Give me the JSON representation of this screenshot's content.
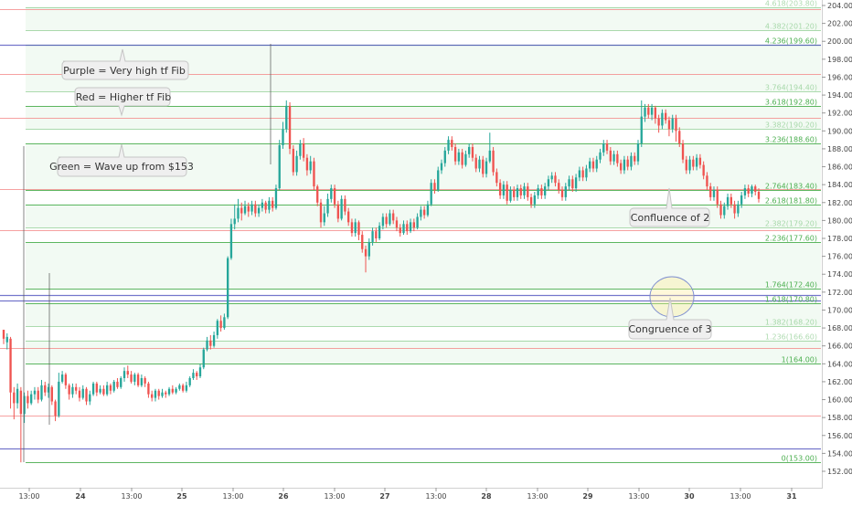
{
  "chart_data": {
    "type": "candlestick",
    "ylim": [
      151,
      205
    ],
    "y_ticks": [
      "152.00",
      "154.00",
      "156.00",
      "158.00",
      "160.00",
      "162.00",
      "164.00",
      "166.00",
      "168.00",
      "170.00",
      "172.00",
      "174.00",
      "176.00",
      "178.00",
      "180.00",
      "182.00",
      "184.00",
      "186.00",
      "188.00",
      "190.00",
      "192.00",
      "194.00",
      "196.00",
      "198.00",
      "200.00",
      "202.00",
      "204.00"
    ],
    "x_ticks": [
      "13:00",
      "24",
      "13:00",
      "25",
      "13:00",
      "26",
      "13:00",
      "27",
      "13:00",
      "28",
      "13:00",
      "29",
      "13:00",
      "30",
      "13:00",
      "31"
    ],
    "fib_levels": [
      {
        "label": "0(153.00)",
        "value": 153.0,
        "group": "green"
      },
      {
        "label": "1(164.00)",
        "value": 164.0,
        "group": "green"
      },
      {
        "label": "1.236(166.60)",
        "value": 166.6,
        "group": "green"
      },
      {
        "label": "1.382(168.20)",
        "value": 168.2,
        "group": "green"
      },
      {
        "label": "1.618(170.80)",
        "value": 170.8,
        "group": "green"
      },
      {
        "label": "1.764(172.40)",
        "value": 172.4,
        "group": "green"
      },
      {
        "label": "2.236(177.60)",
        "value": 177.6,
        "group": "green"
      },
      {
        "label": "2.382(179.20)",
        "value": 179.2,
        "group": "green"
      },
      {
        "label": "2.618(181.80)",
        "value": 181.8,
        "group": "green"
      },
      {
        "label": "2.764(183.40)",
        "value": 183.4,
        "group": "green"
      },
      {
        "label": "3.236(188.60)",
        "value": 188.6,
        "group": "green"
      },
      {
        "label": "3.382(190.20)",
        "value": 190.2,
        "group": "green"
      },
      {
        "label": "3.618(192.80)",
        "value": 192.8,
        "group": "green"
      },
      {
        "label": "3.764(194.40)",
        "value": 194.4,
        "group": "green"
      },
      {
        "label": "4.236(199.60)",
        "value": 199.6,
        "group": "green"
      },
      {
        "label": "4.382(201.20)",
        "value": 201.2,
        "group": "green"
      },
      {
        "label": "4.618(203.80)",
        "value": 203.8,
        "group": "green"
      }
    ],
    "red_levels": [
      158.2,
      165.8,
      178.9,
      183.5,
      191.5,
      196.4,
      203.6
    ],
    "purple_levels": [
      154.6,
      171.1,
      171.7,
      199.6
    ],
    "candles": [
      [
        167.8,
        166.8,
        167.6,
        166.2
      ],
      [
        166.4,
        167.0,
        167.4,
        165.6
      ],
      [
        166.8,
        160.8,
        167.0,
        159.0
      ],
      [
        160.8,
        159.6,
        161.4,
        157.8
      ],
      [
        159.6,
        161.2,
        161.8,
        159.0
      ],
      [
        161.0,
        158.4,
        161.4,
        153.0
      ],
      [
        158.4,
        160.4,
        160.8,
        157.4
      ],
      [
        160.4,
        159.6,
        161.0,
        159.0
      ],
      [
        159.6,
        160.6,
        161.0,
        159.4
      ],
      [
        160.6,
        161.0,
        161.4,
        160.0
      ],
      [
        161.0,
        160.0,
        161.4,
        159.6
      ],
      [
        160.0,
        161.6,
        162.2,
        159.8
      ],
      [
        161.6,
        160.8,
        162.0,
        160.4
      ],
      [
        160.8,
        161.4,
        161.8,
        160.2
      ],
      [
        161.4,
        159.8,
        161.6,
        159.4
      ],
      [
        159.8,
        158.2,
        160.0,
        157.6
      ],
      [
        158.2,
        162.0,
        163.0,
        158.0
      ],
      [
        162.0,
        162.8,
        163.2,
        161.8
      ],
      [
        162.8,
        161.6,
        163.0,
        161.2
      ],
      [
        161.6,
        160.6,
        161.8,
        160.0
      ],
      [
        160.6,
        161.4,
        161.8,
        160.2
      ],
      [
        161.4,
        161.0,
        161.8,
        160.6
      ],
      [
        161.0,
        160.2,
        161.4,
        159.8
      ],
      [
        160.2,
        161.2,
        161.6,
        160.0
      ],
      [
        161.2,
        159.8,
        161.4,
        159.4
      ],
      [
        159.8,
        160.6,
        161.0,
        159.4
      ],
      [
        160.6,
        161.8,
        162.0,
        160.4
      ],
      [
        161.8,
        160.8,
        162.0,
        160.4
      ],
      [
        160.8,
        161.2,
        161.6,
        160.6
      ],
      [
        161.2,
        160.6,
        161.6,
        160.4
      ],
      [
        160.6,
        161.6,
        162.0,
        160.4
      ],
      [
        161.6,
        161.0,
        161.8,
        160.6
      ],
      [
        161.0,
        162.0,
        162.2,
        160.8
      ],
      [
        162.0,
        161.4,
        162.4,
        161.2
      ],
      [
        161.4,
        162.4,
        162.6,
        161.2
      ],
      [
        162.4,
        163.2,
        163.6,
        162.0
      ],
      [
        163.2,
        162.8,
        163.8,
        162.4
      ],
      [
        162.8,
        162.0,
        163.2,
        161.8
      ],
      [
        162.0,
        162.8,
        163.0,
        161.6
      ],
      [
        162.8,
        161.6,
        163.0,
        161.4
      ],
      [
        161.6,
        162.4,
        162.8,
        161.4
      ],
      [
        162.4,
        161.8,
        162.6,
        161.4
      ],
      [
        161.8,
        160.6,
        162.0,
        160.2
      ],
      [
        160.6,
        160.2,
        161.0,
        159.8
      ],
      [
        160.2,
        161.0,
        161.2,
        159.8
      ],
      [
        161.0,
        160.4,
        161.2,
        160.0
      ],
      [
        160.4,
        160.8,
        161.2,
        160.2
      ],
      [
        160.8,
        160.6,
        161.0,
        160.2
      ],
      [
        160.6,
        161.2,
        161.4,
        160.4
      ],
      [
        161.2,
        160.8,
        161.6,
        160.6
      ],
      [
        160.8,
        161.2,
        161.4,
        160.6
      ],
      [
        161.2,
        161.6,
        161.8,
        161.0
      ],
      [
        161.6,
        161.0,
        161.8,
        160.8
      ],
      [
        161.0,
        161.6,
        162.0,
        160.8
      ],
      [
        161.6,
        162.4,
        162.6,
        161.4
      ],
      [
        162.4,
        163.0,
        163.4,
        162.2
      ],
      [
        163.0,
        162.6,
        163.2,
        162.2
      ],
      [
        162.6,
        163.6,
        164.0,
        162.4
      ],
      [
        163.6,
        165.6,
        165.8,
        163.4
      ],
      [
        165.6,
        166.6,
        167.0,
        165.4
      ],
      [
        166.6,
        166.0,
        167.2,
        165.6
      ],
      [
        166.0,
        167.2,
        167.6,
        165.8
      ],
      [
        167.2,
        168.8,
        169.0,
        166.8
      ],
      [
        168.8,
        168.0,
        169.4,
        167.6
      ],
      [
        168.0,
        169.2,
        169.6,
        167.8
      ],
      [
        169.2,
        175.8,
        176.0,
        169.0
      ],
      [
        175.8,
        179.6,
        180.2,
        175.6
      ],
      [
        179.6,
        180.2,
        181.8,
        179.0
      ],
      [
        180.2,
        181.4,
        182.4,
        179.8
      ],
      [
        181.4,
        180.8,
        182.0,
        180.0
      ],
      [
        180.8,
        181.6,
        182.2,
        180.6
      ],
      [
        181.6,
        181.0,
        182.0,
        180.4
      ],
      [
        181.0,
        181.8,
        182.2,
        180.6
      ],
      [
        181.8,
        180.8,
        182.2,
        180.4
      ],
      [
        180.8,
        181.4,
        181.8,
        180.4
      ],
      [
        181.4,
        182.0,
        182.4,
        181.0
      ],
      [
        182.0,
        181.2,
        182.2,
        180.8
      ],
      [
        181.2,
        182.2,
        182.6,
        180.8
      ],
      [
        182.2,
        181.4,
        182.6,
        181.0
      ],
      [
        181.4,
        183.6,
        184.0,
        181.2
      ],
      [
        183.6,
        188.4,
        189.0,
        183.4
      ],
      [
        188.4,
        190.2,
        191.0,
        188.0
      ],
      [
        190.2,
        192.8,
        193.4,
        189.8
      ],
      [
        192.8,
        188.0,
        193.2,
        187.4
      ],
      [
        188.0,
        185.4,
        188.4,
        185.0
      ],
      [
        185.4,
        187.2,
        187.8,
        185.0
      ],
      [
        187.2,
        188.6,
        189.0,
        186.8
      ],
      [
        188.6,
        187.0,
        189.2,
        186.6
      ],
      [
        187.0,
        185.6,
        187.4,
        185.0
      ],
      [
        185.6,
        186.6,
        187.2,
        185.2
      ],
      [
        186.6,
        183.8,
        187.0,
        183.4
      ],
      [
        183.8,
        182.0,
        184.0,
        181.6
      ],
      [
        182.0,
        179.8,
        182.4,
        179.2
      ],
      [
        179.8,
        180.8,
        181.6,
        179.4
      ],
      [
        180.8,
        182.4,
        183.0,
        180.4
      ],
      [
        182.4,
        183.6,
        184.0,
        182.0
      ],
      [
        183.6,
        181.8,
        184.0,
        181.4
      ],
      [
        181.8,
        180.2,
        182.2,
        179.8
      ],
      [
        180.2,
        182.4,
        182.8,
        180.0
      ],
      [
        182.4,
        181.0,
        182.8,
        180.6
      ],
      [
        181.0,
        179.8,
        181.4,
        179.4
      ],
      [
        179.8,
        178.6,
        180.2,
        178.2
      ],
      [
        178.6,
        179.8,
        180.2,
        178.2
      ],
      [
        179.8,
        178.4,
        180.0,
        177.8
      ],
      [
        178.4,
        176.8,
        178.8,
        176.4
      ],
      [
        176.8,
        176.0,
        177.2,
        174.2
      ],
      [
        176.0,
        177.6,
        178.0,
        175.6
      ],
      [
        177.6,
        178.8,
        179.2,
        177.2
      ],
      [
        178.8,
        178.0,
        179.2,
        177.6
      ],
      [
        178.0,
        179.4,
        179.8,
        177.8
      ],
      [
        179.4,
        180.4,
        180.8,
        179.0
      ],
      [
        180.4,
        179.6,
        180.8,
        179.2
      ],
      [
        179.6,
        180.8,
        181.2,
        179.4
      ],
      [
        180.8,
        180.0,
        181.2,
        179.6
      ],
      [
        180.0,
        179.2,
        180.4,
        178.8
      ],
      [
        179.2,
        178.6,
        179.6,
        178.2
      ],
      [
        178.6,
        179.6,
        180.0,
        178.4
      ],
      [
        179.6,
        178.8,
        180.0,
        178.4
      ],
      [
        178.8,
        179.8,
        180.2,
        178.6
      ],
      [
        179.8,
        179.2,
        180.2,
        178.8
      ],
      [
        179.2,
        180.4,
        180.8,
        179.0
      ],
      [
        180.4,
        181.2,
        181.6,
        180.0
      ],
      [
        181.2,
        180.6,
        181.6,
        180.2
      ],
      [
        180.6,
        181.8,
        182.2,
        180.4
      ],
      [
        181.8,
        184.2,
        184.6,
        181.6
      ],
      [
        184.2,
        183.4,
        184.6,
        183.0
      ],
      [
        183.4,
        185.6,
        186.0,
        183.2
      ],
      [
        185.6,
        186.4,
        186.8,
        185.2
      ],
      [
        186.4,
        187.8,
        188.2,
        186.0
      ],
      [
        187.8,
        189.0,
        189.4,
        187.4
      ],
      [
        189.0,
        188.2,
        189.4,
        187.8
      ],
      [
        188.2,
        186.6,
        188.6,
        186.2
      ],
      [
        186.6,
        187.6,
        188.0,
        186.2
      ],
      [
        187.6,
        186.2,
        188.0,
        185.8
      ],
      [
        186.2,
        187.4,
        187.8,
        186.0
      ],
      [
        187.4,
        188.2,
        188.6,
        187.0
      ],
      [
        188.2,
        187.0,
        188.6,
        186.6
      ],
      [
        187.0,
        185.8,
        187.4,
        185.4
      ],
      [
        185.8,
        186.8,
        187.2,
        185.4
      ],
      [
        186.8,
        185.2,
        187.2,
        184.8
      ],
      [
        185.2,
        186.6,
        187.0,
        184.8
      ],
      [
        186.6,
        187.8,
        189.8,
        186.4
      ],
      [
        187.8,
        185.4,
        188.2,
        185.0
      ],
      [
        185.4,
        184.2,
        185.8,
        183.8
      ],
      [
        184.2,
        182.8,
        184.6,
        182.4
      ],
      [
        182.8,
        184.0,
        184.4,
        182.4
      ],
      [
        184.0,
        182.2,
        184.4,
        181.8
      ],
      [
        182.2,
        183.4,
        183.8,
        182.0
      ],
      [
        183.4,
        182.6,
        183.8,
        182.2
      ],
      [
        182.6,
        183.6,
        184.0,
        182.2
      ],
      [
        183.6,
        182.8,
        184.0,
        182.4
      ],
      [
        182.8,
        183.8,
        184.2,
        182.4
      ],
      [
        183.8,
        182.6,
        184.2,
        182.2
      ],
      [
        182.6,
        181.8,
        183.0,
        181.4
      ],
      [
        181.8,
        182.8,
        183.2,
        181.4
      ],
      [
        182.8,
        183.6,
        184.0,
        182.4
      ],
      [
        183.6,
        182.8,
        184.0,
        182.4
      ],
      [
        182.8,
        183.8,
        184.2,
        182.4
      ],
      [
        183.8,
        184.6,
        185.0,
        183.4
      ],
      [
        184.6,
        185.0,
        185.4,
        184.2
      ],
      [
        185.0,
        184.2,
        185.4,
        183.8
      ],
      [
        184.2,
        183.4,
        184.6,
        183.0
      ],
      [
        183.4,
        182.6,
        183.8,
        182.2
      ],
      [
        182.6,
        183.8,
        184.2,
        182.2
      ],
      [
        183.8,
        184.6,
        185.0,
        183.4
      ],
      [
        184.6,
        183.6,
        185.0,
        183.2
      ],
      [
        183.6,
        184.8,
        185.2,
        183.2
      ],
      [
        184.8,
        185.6,
        186.0,
        184.4
      ],
      [
        185.6,
        184.8,
        186.0,
        184.4
      ],
      [
        184.8,
        185.8,
        186.2,
        184.4
      ],
      [
        185.8,
        186.6,
        187.0,
        185.4
      ],
      [
        186.6,
        185.8,
        187.0,
        185.4
      ],
      [
        185.8,
        186.8,
        187.2,
        185.4
      ],
      [
        186.8,
        187.6,
        188.0,
        186.4
      ],
      [
        187.6,
        188.6,
        189.0,
        187.2
      ],
      [
        188.6,
        187.8,
        189.0,
        187.4
      ],
      [
        187.8,
        186.6,
        188.2,
        186.2
      ],
      [
        186.6,
        187.4,
        187.8,
        186.2
      ],
      [
        187.4,
        186.4,
        187.8,
        186.0
      ],
      [
        186.4,
        185.6,
        186.8,
        185.2
      ],
      [
        185.6,
        186.8,
        187.2,
        185.2
      ],
      [
        186.8,
        186.0,
        187.2,
        185.6
      ],
      [
        186.0,
        187.2,
        187.6,
        185.6
      ],
      [
        187.2,
        186.6,
        187.6,
        186.2
      ],
      [
        186.6,
        188.6,
        189.0,
        186.2
      ],
      [
        188.6,
        191.6,
        193.4,
        188.2
      ],
      [
        191.6,
        192.6,
        193.0,
        191.0
      ],
      [
        192.6,
        191.8,
        193.0,
        191.4
      ],
      [
        191.8,
        192.6,
        193.0,
        191.2
      ],
      [
        192.6,
        191.4,
        192.8,
        190.8
      ],
      [
        191.4,
        190.6,
        191.8,
        189.8
      ],
      [
        190.6,
        192.0,
        192.4,
        190.2
      ],
      [
        192.0,
        191.2,
        192.4,
        190.8
      ],
      [
        191.2,
        190.2,
        191.6,
        189.4
      ],
      [
        190.2,
        191.4,
        191.8,
        189.8
      ],
      [
        191.4,
        190.0,
        191.8,
        188.8
      ],
      [
        190.0,
        188.6,
        190.4,
        188.2
      ],
      [
        188.6,
        186.8,
        189.0,
        186.4
      ],
      [
        186.8,
        185.6,
        187.2,
        185.2
      ],
      [
        185.6,
        186.8,
        187.2,
        185.2
      ],
      [
        186.8,
        186.0,
        187.2,
        185.6
      ],
      [
        186.0,
        187.0,
        187.4,
        185.6
      ],
      [
        187.0,
        186.2,
        187.4,
        185.8
      ],
      [
        186.2,
        185.0,
        186.6,
        184.6
      ],
      [
        185.0,
        183.8,
        185.4,
        183.4
      ],
      [
        183.8,
        182.6,
        184.2,
        182.2
      ],
      [
        182.6,
        183.4,
        183.8,
        182.2
      ],
      [
        183.4,
        181.8,
        183.8,
        181.4
      ],
      [
        181.8,
        180.6,
        182.2,
        180.2
      ],
      [
        180.6,
        181.6,
        182.0,
        180.2
      ],
      [
        181.6,
        182.6,
        183.0,
        181.2
      ],
      [
        182.6,
        181.8,
        183.0,
        181.4
      ],
      [
        181.8,
        180.8,
        182.2,
        180.2
      ],
      [
        180.8,
        181.8,
        182.2,
        180.4
      ],
      [
        181.8,
        182.8,
        183.2,
        181.4
      ],
      [
        182.8,
        183.6,
        184.0,
        182.4
      ],
      [
        183.6,
        183.0,
        184.0,
        182.6
      ],
      [
        183.0,
        183.8,
        184.0,
        182.6
      ],
      [
        183.8,
        183.2,
        184.0,
        182.8
      ],
      [
        183.2,
        182.4,
        183.6,
        182.0
      ]
    ]
  },
  "annotations": {
    "purple": "Purple = Very high tf Fib",
    "red": "Red = Higher tf Fib",
    "green": "Green = Wave up from $153",
    "confluence": "Confluence of 2",
    "congruence": "Congruence of 3"
  },
  "colors": {
    "bull": "#26a69a",
    "bear": "#ef5350",
    "fib": "#4caf50",
    "fib_fill": "#e8f5e9",
    "red_line": "#f48a8a",
    "purple_line": "#5c5fc4",
    "axis_text": "#444444"
  }
}
